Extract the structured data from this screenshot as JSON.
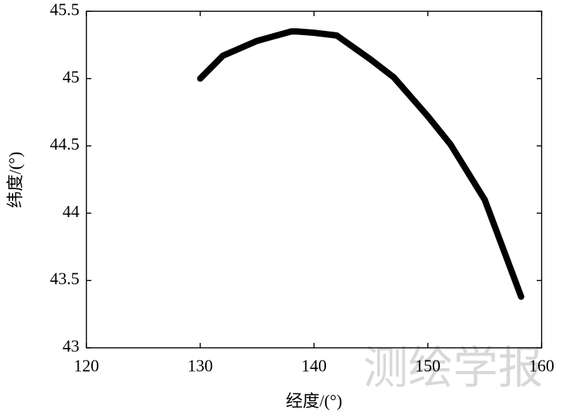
{
  "chart_data": {
    "type": "line",
    "xlabel": "经度/(°)",
    "ylabel": "纬度/(°)",
    "watermark": "测绘学报",
    "x": [
      130,
      132,
      135,
      138,
      138.5,
      140,
      142,
      145,
      147,
      150,
      152,
      155,
      157,
      158.2
    ],
    "values": [
      45.0,
      45.17,
      45.28,
      45.35,
      45.35,
      45.34,
      45.32,
      45.14,
      45.01,
      44.72,
      44.51,
      44.1,
      43.65,
      43.38
    ],
    "color": "#000000",
    "xlim": [
      120,
      160
    ],
    "xticks": [
      120,
      130,
      140,
      150,
      160
    ],
    "ylim": [
      43,
      45.5
    ],
    "yticks": [
      43,
      43.5,
      44,
      44.5,
      45,
      45.5
    ]
  }
}
